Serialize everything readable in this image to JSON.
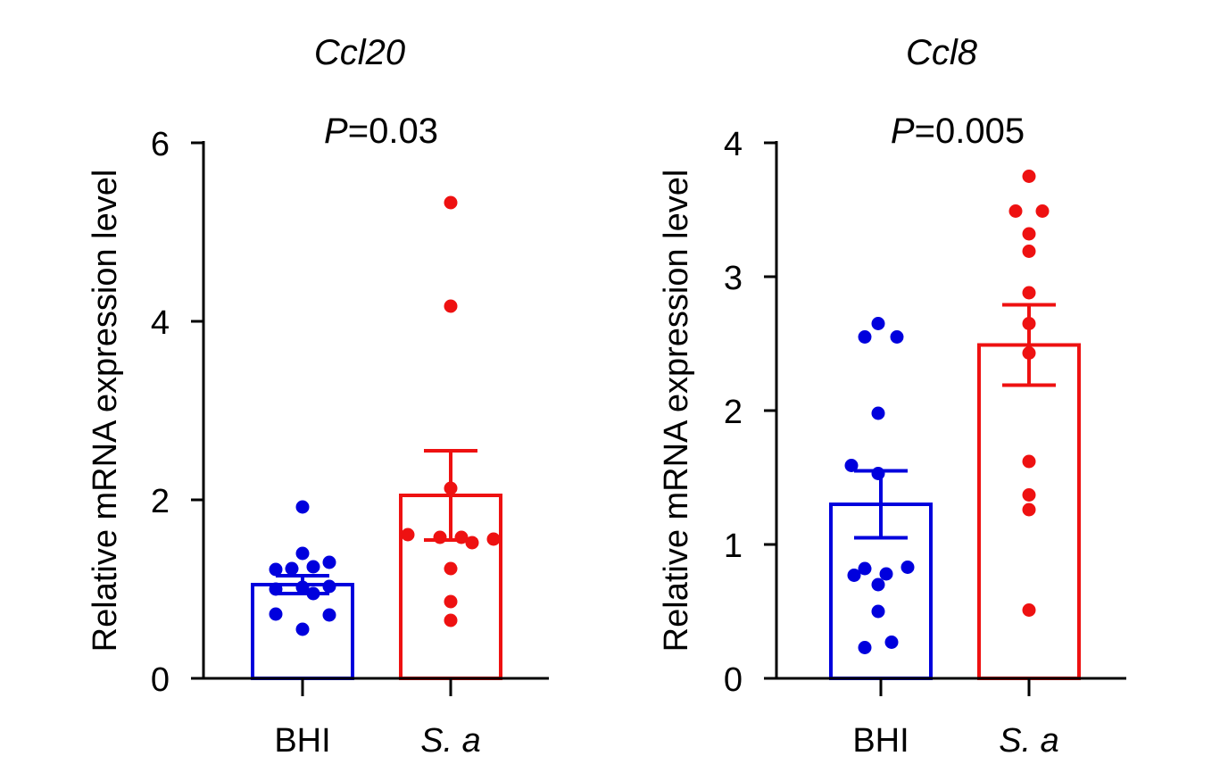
{
  "chart_data": [
    {
      "type": "bar",
      "title": "Ccl20",
      "annotation": {
        "p_label": "P",
        "p_value": "=0.03"
      },
      "ylabel": "Relative mRNA expression level",
      "ylim": [
        0,
        6
      ],
      "yticks": [
        "0",
        "2",
        "4",
        "6"
      ],
      "categories": [
        "BHI",
        "S. a"
      ],
      "category_italic": [
        false,
        true
      ],
      "colors": [
        "#0000dd",
        "#ee1111"
      ],
      "means": [
        1.05,
        2.05
      ],
      "sem": [
        0.1,
        0.5
      ],
      "points": [
        [
          1.92,
          1.4,
          1.3,
          1.22,
          1.23,
          1.25,
          1.03,
          1.0,
          1.02,
          0.95,
          0.72,
          0.71,
          0.55
        ],
        [
          5.33,
          4.17,
          2.13,
          1.61,
          1.58,
          1.58,
          1.56,
          1.52,
          1.23,
          0.86,
          0.65
        ]
      ]
    },
    {
      "type": "bar",
      "title": "Ccl8",
      "annotation": {
        "p_label": "P",
        "p_value": "=0.005"
      },
      "ylabel": "Relative mRNA expression level",
      "ylim": [
        0,
        4
      ],
      "yticks": [
        "0",
        "1",
        "2",
        "3",
        "4"
      ],
      "categories": [
        "BHI",
        "S. a"
      ],
      "category_italic": [
        false,
        true
      ],
      "colors": [
        "#0000dd",
        "#ee1111"
      ],
      "means": [
        1.3,
        2.49
      ],
      "sem": [
        0.25,
        0.3
      ],
      "points": [
        [
          2.65,
          2.55,
          2.55,
          1.98,
          1.59,
          1.53,
          0.83,
          0.82,
          0.78,
          0.77,
          0.7,
          0.5,
          0.27,
          0.23
        ],
        [
          3.75,
          3.49,
          3.49,
          3.32,
          3.19,
          2.88,
          2.65,
          2.43,
          1.62,
          1.37,
          1.26,
          0.51
        ]
      ]
    }
  ]
}
